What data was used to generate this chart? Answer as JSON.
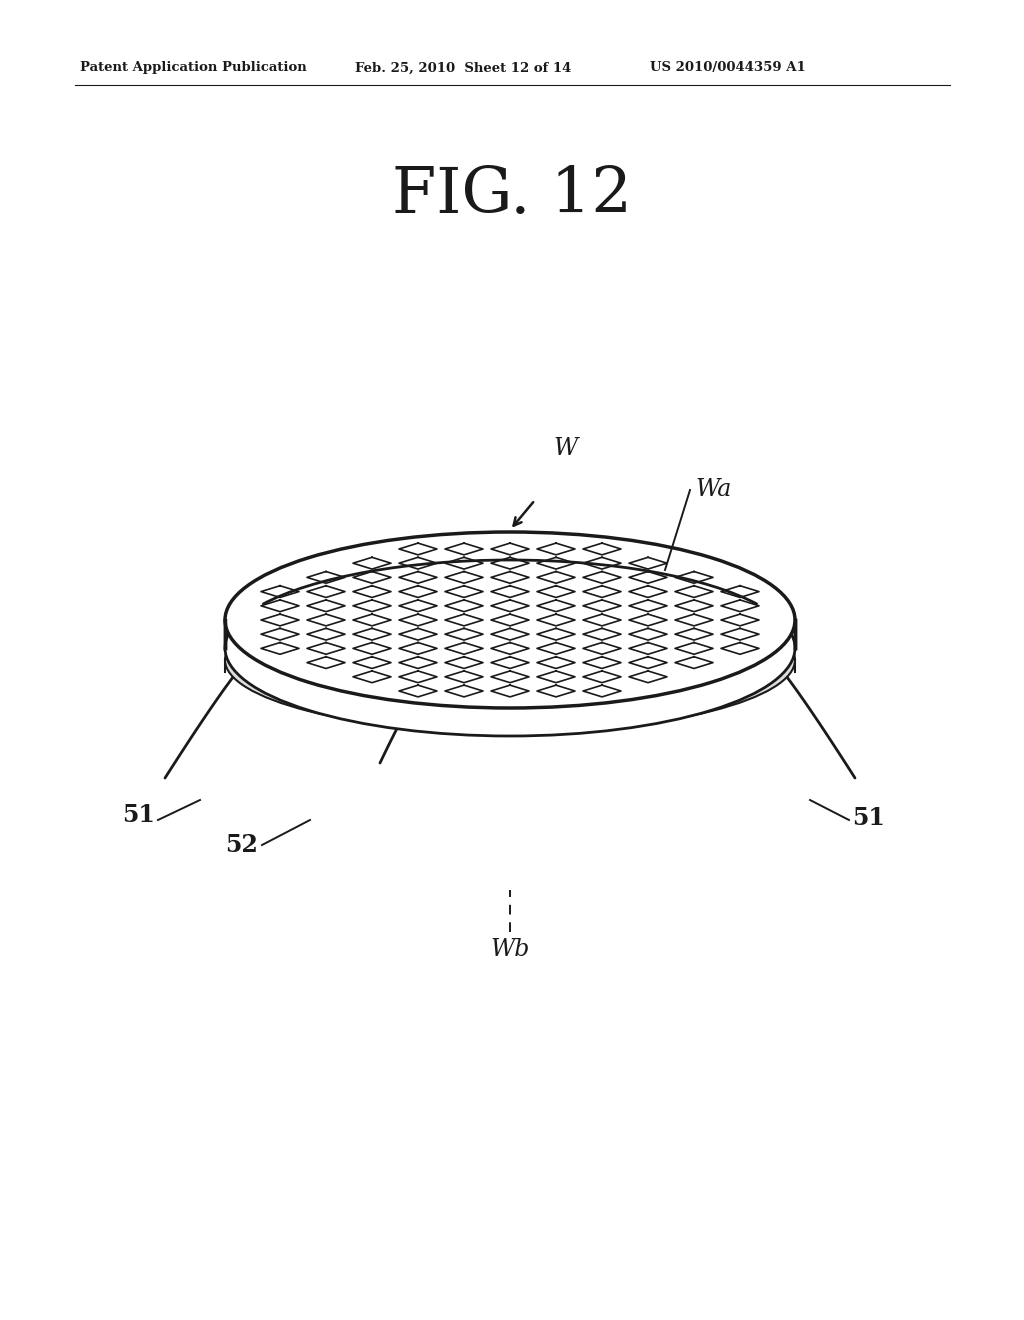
{
  "background_color": "#ffffff",
  "header_left": "Patent Application Publication",
  "header_mid": "Feb. 25, 2010  Sheet 12 of 14",
  "header_right": "US 2010/0044359 A1",
  "figure_title": "FIG. 12",
  "label_W": "W",
  "label_Wa": "Wa",
  "label_Wb": "Wb",
  "label_51_left": "51",
  "label_51_right": "51",
  "label_52": "52",
  "line_color": "#1a1a1a",
  "text_color": "#1a1a1a"
}
